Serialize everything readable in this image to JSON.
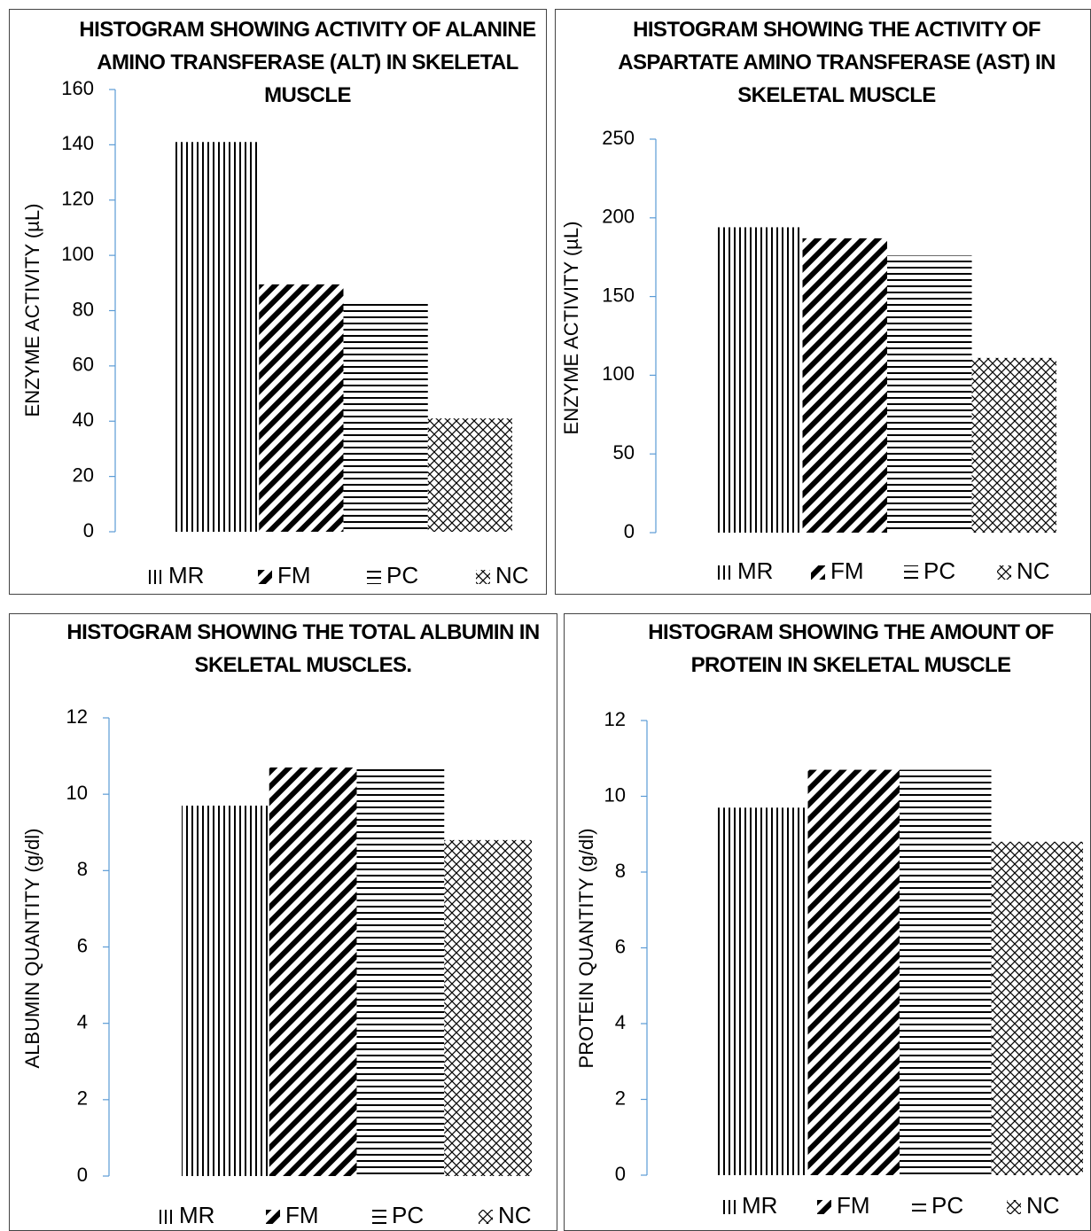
{
  "chart_data": [
    {
      "type": "bar",
      "title": "HISTOGRAM SHOWING ACTIVITY OF ALANINE AMINO TRANSFERASE (ALT) IN SKELETAL MUSCLE",
      "ylabel": "ENZYME ACTIVITY (µL)",
      "series": [
        {
          "name": "MR",
          "color": "#000000",
          "pattern": "vertical",
          "values": [
            141
          ]
        },
        {
          "name": "FM",
          "color": "#000000",
          "pattern": "diagonal",
          "values": [
            89.5
          ]
        },
        {
          "name": "PC",
          "color": "#000000",
          "pattern": "horizontal",
          "values": [
            82.5
          ]
        },
        {
          "name": "NC",
          "color": "#000000",
          "pattern": "cross",
          "values": [
            41
          ]
        }
      ],
      "ylim": [
        0,
        160
      ],
      "yticks": [
        0,
        20,
        40,
        60,
        80,
        100,
        120,
        140,
        160
      ],
      "legend": "bottom"
    },
    {
      "type": "bar",
      "title": "HISTOGRAM SHOWING THE ACTIVITY OF ASPARTATE AMINO TRANSFERASE (AST) IN SKELETAL MUSCLE",
      "ylabel": "ENZYME ACTIVITY (µL)",
      "series": [
        {
          "name": "MR",
          "color": "#000000",
          "pattern": "vertical",
          "values": [
            194
          ]
        },
        {
          "name": "FM",
          "color": "#000000",
          "pattern": "diagonal",
          "values": [
            187
          ]
        },
        {
          "name": "PC",
          "color": "#000000",
          "pattern": "horizontal",
          "values": [
            176
          ]
        },
        {
          "name": "NC",
          "color": "#000000",
          "pattern": "cross",
          "values": [
            111
          ]
        }
      ],
      "ylim": [
        0,
        250
      ],
      "yticks": [
        0,
        50,
        100,
        150,
        200,
        250
      ],
      "legend": "bottom"
    },
    {
      "type": "bar",
      "title": "HISTOGRAM SHOWING THE TOTAL ALBUMIN IN SKELETAL MUSCLES.",
      "ylabel": "ALBUMIN QUANTITY  (g/dl)",
      "series": [
        {
          "name": "MR",
          "color": "#000000",
          "pattern": "vertical",
          "values": [
            9.7
          ]
        },
        {
          "name": "FM",
          "color": "#000000",
          "pattern": "diagonal",
          "values": [
            10.7
          ]
        },
        {
          "name": "PC",
          "color": "#000000",
          "pattern": "horizontal",
          "values": [
            10.75
          ]
        },
        {
          "name": "NC",
          "color": "#000000",
          "pattern": "cross",
          "values": [
            8.8
          ]
        }
      ],
      "ylim": [
        0,
        12
      ],
      "yticks": [
        0,
        2,
        4,
        6,
        8,
        10,
        12
      ],
      "legend": "bottom"
    },
    {
      "type": "bar",
      "title": "HISTOGRAM SHOWING THE AMOUNT OF PROTEIN IN SKELETAL MUSCLE",
      "ylabel": "PROTEIN QUANTITY (g/dl)",
      "series": [
        {
          "name": "MR",
          "color": "#000000",
          "pattern": "vertical",
          "values": [
            9.7
          ]
        },
        {
          "name": "FM",
          "color": "#000000",
          "pattern": "diagonal",
          "values": [
            10.7
          ]
        },
        {
          "name": "PC",
          "color": "#000000",
          "pattern": "horizontal",
          "values": [
            10.7
          ]
        },
        {
          "name": "NC",
          "color": "#000000",
          "pattern": "cross",
          "values": [
            8.8
          ]
        }
      ],
      "ylim": [
        0,
        12
      ],
      "yticks": [
        0,
        2,
        4,
        6,
        8,
        10,
        12
      ],
      "legend": "bottom"
    }
  ]
}
